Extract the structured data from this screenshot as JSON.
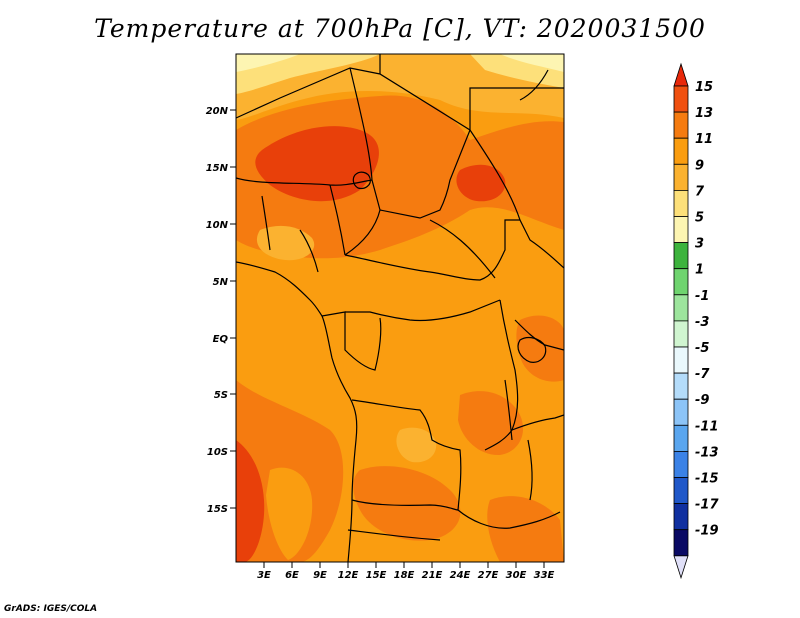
{
  "title": "Temperature at 700hPa [C], VT: 2020031500",
  "credit": "GrADS: IGES/COLA",
  "map": {
    "y_ticks": [
      "20N",
      "15N",
      "10N",
      "5N",
      "EQ",
      "5S",
      "10S",
      "15S"
    ],
    "x_ticks": [
      "3E",
      "6E",
      "9E",
      "12E",
      "15E",
      "18E",
      "21E",
      "24E",
      "27E",
      "30E",
      "33E"
    ],
    "lon_range": [
      0,
      35
    ],
    "lat_range": [
      -20,
      24
    ]
  },
  "colorbar": {
    "levels": [
      "15",
      "13",
      "11",
      "9",
      "7",
      "5",
      "3",
      "1",
      "-1",
      "-3",
      "-5",
      "-7",
      "-9",
      "-11",
      "-13",
      "-15",
      "-17",
      "-19"
    ],
    "colors": [
      "#e8280a",
      "#f05010",
      "#f57b10",
      "#fa9d10",
      "#fbb230",
      "#fde07a",
      "#fdf5b2",
      "#3db33d",
      "#6fd46f",
      "#9de59d",
      "#d0f5d0",
      "#eaf8fc",
      "#b4dcfa",
      "#8cc4f7",
      "#5aa6ef",
      "#3b82e6",
      "#2058c9",
      "#1030a0",
      "#0a0a64",
      "#e0e0f8"
    ]
  },
  "field_colors": {
    "t14": "#e8400a",
    "t12": "#f57b10",
    "t10": "#fa9d10",
    "t8": "#fbb230",
    "t6": "#fde07a",
    "t4": "#fdf5b2"
  }
}
